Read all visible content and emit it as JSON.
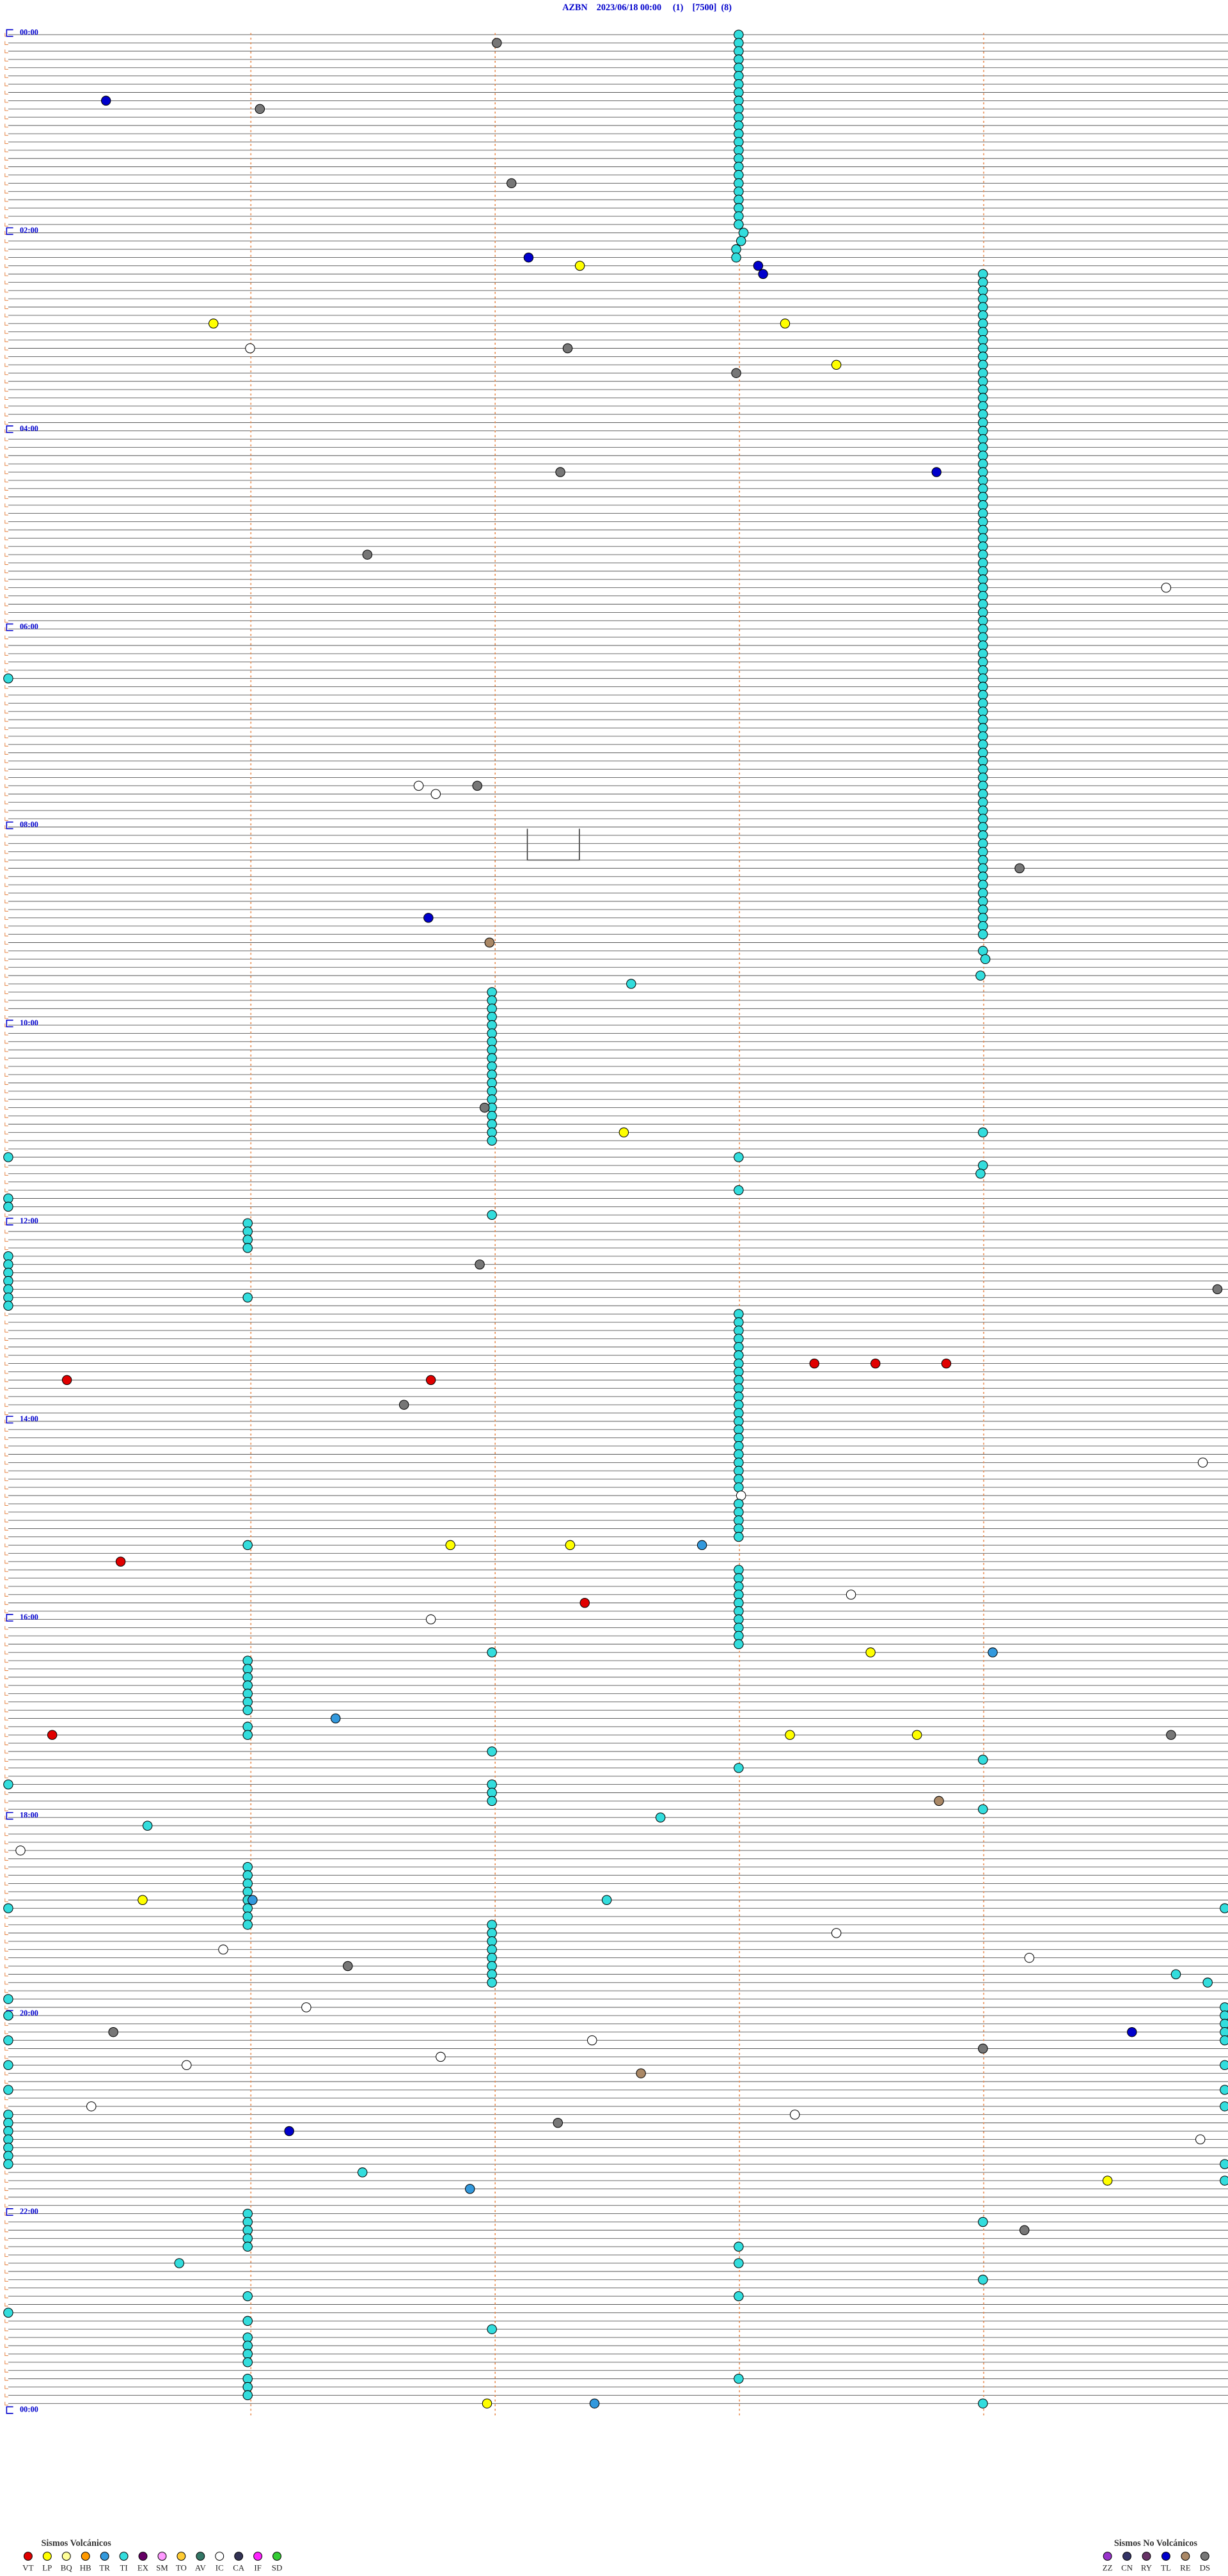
{
  "title": "AZBN    2023/06/18 00:00     (1)    [7500]  (8)",
  "hour_labels": [
    "00:00",
    "02:00",
    "04:00",
    "06:00",
    "08:00",
    "10:00",
    "12:00",
    "14:00",
    "16:00",
    "18:00",
    "20:00",
    "22:00",
    "00:00"
  ],
  "legend_volcanic": {
    "title": "Sismos Volcánicos",
    "codes": [
      "VT",
      "LP",
      "BQ",
      "HB",
      "TR",
      "TI",
      "EX",
      "SM",
      "TO",
      "AV",
      "IC",
      "CA",
      "IF",
      "SD"
    ],
    "colors": [
      "#e00000",
      "#ffff00",
      "#ffff99",
      "#ff9900",
      "#3399dd",
      "#33dddd",
      "#660066",
      "#ff99ff",
      "#ffcc33",
      "#337766",
      "#ffffff",
      "#333355",
      "#ff22ff",
      "#33cc33"
    ]
  },
  "legend_other": {
    "title": "Sismos No Volcánicos",
    "codes": [
      "ZZ",
      "CN",
      "RY",
      "TL",
      "RE",
      "DS"
    ],
    "colors": [
      "#9933cc",
      "#333366",
      "#663366",
      "#0000cc",
      "#aa8866",
      "#777777"
    ]
  },
  "events": [
    [
      "TI",
      0,
      2.99
    ],
    [
      "TI",
      1,
      2.99
    ],
    [
      "TI",
      2,
      2.99
    ],
    [
      "TI",
      3,
      2.99
    ],
    [
      "TI",
      4,
      2.99
    ],
    [
      "TI",
      5,
      2.99
    ],
    [
      "TI",
      6,
      2.99
    ],
    [
      "TI",
      7,
      2.99
    ],
    [
      "TI",
      8,
      2.99
    ],
    [
      "TI",
      9,
      2.99
    ],
    [
      "TI",
      10,
      2.99
    ],
    [
      "TI",
      11,
      2.99
    ],
    [
      "TI",
      12,
      2.99
    ],
    [
      "TI",
      13,
      2.99
    ],
    [
      "TI",
      14,
      2.99
    ],
    [
      "TI",
      15,
      2.99
    ],
    [
      "TI",
      16,
      2.99
    ],
    [
      "TI",
      17,
      2.99
    ],
    [
      "TI",
      18,
      2.99
    ],
    [
      "TI",
      19,
      2.99
    ],
    [
      "TI",
      20,
      2.99
    ],
    [
      "TI",
      21,
      2.99
    ],
    [
      "TI",
      22,
      2.99
    ],
    [
      "TI",
      23,
      2.99
    ],
    [
      "TI",
      24,
      3.01
    ],
    [
      "TI",
      25,
      3.0
    ],
    [
      "TI",
      26,
      2.98
    ],
    [
      "TI",
      27,
      2.98
    ],
    [
      "DS",
      1,
      2.0
    ],
    [
      "TL",
      8,
      0.4
    ],
    [
      "DS",
      9,
      1.03
    ],
    [
      "DS",
      18,
      2.06
    ],
    [
      "TL",
      27,
      2.13
    ],
    [
      "LP",
      28,
      2.34
    ],
    [
      "TL",
      28,
      3.07
    ],
    [
      "TL",
      29,
      3.09
    ],
    [
      "TI",
      29,
      3.99
    ],
    [
      "TI",
      30,
      3.99
    ],
    [
      "TI",
      31,
      3.99
    ],
    [
      "TI",
      32,
      3.99
    ],
    [
      "TI",
      33,
      3.99
    ],
    [
      "TI",
      34,
      3.99
    ],
    [
      "TI",
      35,
      3.99
    ],
    [
      "TI",
      36,
      3.99
    ],
    [
      "TI",
      37,
      3.99
    ],
    [
      "TI",
      38,
      3.99
    ],
    [
      "TI",
      39,
      3.99
    ],
    [
      "TI",
      40,
      3.99
    ],
    [
      "TI",
      41,
      3.99
    ],
    [
      "TI",
      42,
      3.99
    ],
    [
      "TI",
      43,
      3.99
    ],
    [
      "TI",
      44,
      3.99
    ],
    [
      "TI",
      45,
      3.99
    ],
    [
      "TI",
      46,
      3.99
    ],
    [
      "TI",
      47,
      3.99
    ],
    [
      "TI",
      48,
      3.99
    ],
    [
      "TI",
      49,
      3.99
    ],
    [
      "TI",
      50,
      3.99
    ],
    [
      "TI",
      51,
      3.99
    ],
    [
      "TI",
      52,
      3.99
    ],
    [
      "TI",
      53,
      3.99
    ],
    [
      "TI",
      54,
      3.99
    ],
    [
      "TI",
      55,
      3.99
    ],
    [
      "TI",
      56,
      3.99
    ],
    [
      "TI",
      57,
      3.99
    ],
    [
      "TI",
      58,
      3.99
    ],
    [
      "TI",
      59,
      3.99
    ],
    [
      "TI",
      60,
      3.99
    ],
    [
      "TI",
      61,
      3.99
    ],
    [
      "TI",
      62,
      3.99
    ],
    [
      "TI",
      63,
      3.99
    ],
    [
      "TI",
      64,
      3.99
    ],
    [
      "TI",
      65,
      3.99
    ],
    [
      "TI",
      66,
      3.99
    ],
    [
      "TI",
      67,
      3.99
    ],
    [
      "TI",
      68,
      3.99
    ],
    [
      "TI",
      69,
      3.99
    ],
    [
      "TI",
      70,
      3.99
    ],
    [
      "TI",
      71,
      3.99
    ],
    [
      "TI",
      72,
      3.99
    ],
    [
      "TI",
      73,
      3.99
    ],
    [
      "TI",
      74,
      3.99
    ],
    [
      "TI",
      75,
      3.99
    ],
    [
      "TI",
      76,
      3.99
    ],
    [
      "TI",
      77,
      3.99
    ],
    [
      "TI",
      78,
      3.99
    ],
    [
      "TI",
      79,
      3.99
    ],
    [
      "TI",
      80,
      3.99
    ],
    [
      "TI",
      81,
      3.99
    ],
    [
      "TI",
      82,
      3.99
    ],
    [
      "TI",
      83,
      3.99
    ],
    [
      "TI",
      84,
      3.99
    ],
    [
      "TI",
      85,
      3.99
    ],
    [
      "TI",
      86,
      3.99
    ],
    [
      "TI",
      87,
      3.99
    ],
    [
      "TI",
      88,
      3.99
    ],
    [
      "TI",
      89,
      3.99
    ],
    [
      "TI",
      90,
      3.99
    ],
    [
      "TI",
      91,
      3.99
    ],
    [
      "TI",
      92,
      3.99
    ],
    [
      "TI",
      93,
      3.99
    ],
    [
      "TI",
      94,
      3.99
    ],
    [
      "TI",
      95,
      3.99
    ],
    [
      "TI",
      96,
      3.99
    ],
    [
      "TI",
      97,
      3.99
    ],
    [
      "TI",
      98,
      3.99
    ],
    [
      "TI",
      99,
      3.99
    ],
    [
      "TI",
      100,
      3.99
    ],
    [
      "TI",
      101,
      3.99
    ],
    [
      "TI",
      102,
      3.99
    ],
    [
      "TI",
      103,
      3.99
    ],
    [
      "TI",
      104,
      3.99
    ],
    [
      "TI",
      105,
      3.99
    ],
    [
      "TI",
      106,
      3.99
    ],
    [
      "TI",
      107,
      3.99
    ],
    [
      "TI",
      108,
      3.99
    ],
    [
      "TI",
      109,
      3.99
    ],
    [
      "LP",
      35,
      0.84
    ],
    [
      "LP",
      35,
      3.18
    ],
    [
      "IC",
      38,
      0.99
    ],
    [
      "DS",
      38,
      2.29
    ],
    [
      "LP",
      40,
      3.39
    ],
    [
      "DS",
      41,
      2.98
    ],
    [
      "DS",
      53,
      2.26
    ],
    [
      "TL",
      53,
      3.8
    ],
    [
      "DS",
      63,
      1.47
    ],
    [
      "IC",
      67,
      4.74
    ],
    [
      "TI",
      78,
      0.0
    ],
    [
      "IC",
      91,
      1.68
    ],
    [
      "IC",
      92,
      1.75
    ],
    [
      "DS",
      91,
      1.92
    ],
    [
      "DS",
      101,
      4.14
    ],
    [
      "TL",
      107,
      1.72
    ],
    [
      "RE",
      110,
      1.97
    ],
    [
      "TI",
      111,
      3.99
    ],
    [
      "TI",
      112,
      4.0
    ],
    [
      "TI",
      114,
      3.98
    ],
    [
      "TI",
      115,
      2.55
    ],
    [
      "TI",
      116,
      1.98
    ],
    [
      "TI",
      117,
      1.98
    ],
    [
      "TI",
      118,
      1.98
    ],
    [
      "TI",
      119,
      1.98
    ],
    [
      "TI",
      120,
      1.98
    ],
    [
      "TI",
      121,
      1.98
    ],
    [
      "TI",
      122,
      1.98
    ],
    [
      "TI",
      123,
      1.98
    ],
    [
      "TI",
      124,
      1.98
    ],
    [
      "TI",
      125,
      1.98
    ],
    [
      "TI",
      126,
      1.98
    ],
    [
      "TI",
      127,
      1.98
    ],
    [
      "TI",
      128,
      1.98
    ],
    [
      "TI",
      129,
      1.98
    ],
    [
      "TI",
      130,
      1.98
    ],
    [
      "TI",
      131,
      1.98
    ],
    [
      "TI",
      132,
      1.98
    ],
    [
      "TI",
      133,
      1.98
    ],
    [
      "TI",
      134,
      1.98
    ],
    [
      "DS",
      130,
      1.95
    ],
    [
      "LP",
      133,
      2.52
    ],
    [
      "TI",
      133,
      3.99
    ],
    [
      "TI",
      136,
      0.0
    ],
    [
      "TI",
      136,
      2.99
    ],
    [
      "TI",
      137,
      3.99
    ],
    [
      "TI",
      138,
      3.98
    ],
    [
      "TI",
      140,
      2.99
    ],
    [
      "TI",
      141,
      0.0
    ],
    [
      "TI",
      142,
      0.0
    ],
    [
      "TI",
      143,
      1.98
    ],
    [
      "TI",
      144,
      0.98
    ],
    [
      "TI",
      145,
      0.98
    ],
    [
      "TI",
      146,
      0.98
    ],
    [
      "TI",
      147,
      0.98
    ],
    [
      "TI",
      148,
      0.0
    ],
    [
      "TI",
      149,
      0.0
    ],
    [
      "TI",
      150,
      0.0
    ],
    [
      "TI",
      151,
      0.0
    ],
    [
      "TI",
      152,
      0.0
    ],
    [
      "TI",
      153,
      0.0
    ],
    [
      "TI",
      154,
      0.0
    ],
    [
      "DS",
      149,
      1.93
    ],
    [
      "DS",
      152,
      4.95
    ],
    [
      "TI",
      153,
      0.98
    ],
    [
      "TI",
      155,
      2.99
    ],
    [
      "TI",
      156,
      2.99
    ],
    [
      "TI",
      157,
      2.99
    ],
    [
      "TI",
      158,
      2.99
    ],
    [
      "TI",
      159,
      2.99
    ],
    [
      "TI",
      160,
      2.99
    ],
    [
      "TI",
      161,
      2.99
    ],
    [
      "TI",
      162,
      2.99
    ],
    [
      "TI",
      163,
      2.99
    ],
    [
      "TI",
      164,
      2.99
    ],
    [
      "TI",
      165,
      2.99
    ],
    [
      "TI",
      166,
      2.99
    ],
    [
      "TI",
      167,
      2.99
    ],
    [
      "TI",
      168,
      2.99
    ],
    [
      "TI",
      169,
      2.99
    ],
    [
      "TI",
      170,
      2.99
    ],
    [
      "TI",
      171,
      2.99
    ],
    [
      "TI",
      172,
      2.99
    ],
    [
      "TI",
      173,
      2.99
    ],
    [
      "TI",
      174,
      2.99
    ],
    [
      "TI",
      175,
      2.99
    ],
    [
      "TI",
      176,
      2.99
    ],
    [
      "IC",
      177,
      3.0
    ],
    [
      "TI",
      178,
      2.99
    ],
    [
      "TI",
      179,
      2.99
    ],
    [
      "TI",
      180,
      2.99
    ],
    [
      "TI",
      181,
      2.99
    ],
    [
      "TI",
      182,
      2.99
    ],
    [
      "TI",
      186,
      2.99
    ],
    [
      "TI",
      187,
      2.99
    ],
    [
      "TI",
      188,
      2.99
    ],
    [
      "TI",
      189,
      2.99
    ],
    [
      "TI",
      190,
      2.99
    ],
    [
      "TI",
      191,
      2.99
    ],
    [
      "TI",
      192,
      2.99
    ],
    [
      "TI",
      193,
      2.99
    ],
    [
      "TI",
      194,
      2.99
    ],
    [
      "TI",
      195,
      2.99
    ],
    [
      "VT",
      161,
      3.3
    ],
    [
      "VT",
      161,
      3.55
    ],
    [
      "VT",
      161,
      3.84
    ],
    [
      "VT",
      163,
      0.24
    ],
    [
      "VT",
      163,
      1.73
    ],
    [
      "DS",
      166,
      1.62
    ],
    [
      "IC",
      173,
      4.89
    ],
    [
      "TI",
      183,
      0.98
    ],
    [
      "LP",
      183,
      1.81
    ],
    [
      "LP",
      183,
      2.3
    ],
    [
      "TR",
      183,
      2.84
    ],
    [
      "VT",
      185,
      0.46
    ],
    [
      "IC",
      189,
      3.45
    ],
    [
      "VT",
      190,
      2.36
    ],
    [
      "IC",
      192,
      1.73
    ],
    [
      "TI",
      196,
      1.98
    ],
    [
      "LP",
      196,
      3.53
    ],
    [
      "TR",
      196,
      4.03
    ],
    [
      "TI",
      197,
      0.98
    ],
    [
      "TI",
      198,
      0.98
    ],
    [
      "TI",
      199,
      0.98
    ],
    [
      "TI",
      200,
      0.98
    ],
    [
      "TI",
      201,
      0.98
    ],
    [
      "TI",
      202,
      0.98
    ],
    [
      "TI",
      203,
      0.98
    ],
    [
      "TI",
      205,
      0.98
    ],
    [
      "TI",
      206,
      0.98
    ],
    [
      "TR",
      204,
      1.34
    ],
    [
      "VT",
      206,
      0.18
    ],
    [
      "LP",
      206,
      3.2
    ],
    [
      "LP",
      206,
      3.72
    ],
    [
      "DS",
      206,
      4.76
    ],
    [
      "TI",
      208,
      1.98
    ],
    [
      "TI",
      210,
      2.99
    ],
    [
      "TI",
      209,
      3.99
    ],
    [
      "TI",
      212,
      0.0
    ],
    [
      "TI",
      212,
      1.98
    ],
    [
      "TI",
      213,
      1.98
    ],
    [
      "TI",
      214,
      1.98
    ],
    [
      "RE",
      214,
      3.81
    ],
    [
      "TI",
      215,
      3.99
    ],
    [
      "TI",
      217,
      0.57
    ],
    [
      "TI",
      216,
      2.67
    ],
    [
      "IC",
      220,
      0.05
    ],
    [
      "TI",
      222,
      0.98
    ],
    [
      "TI",
      223,
      0.98
    ],
    [
      "TI",
      224,
      0.98
    ],
    [
      "TI",
      225,
      0.98
    ],
    [
      "TI",
      226,
      0.98
    ],
    [
      "TI",
      227,
      0.98
    ],
    [
      "TI",
      228,
      0.98
    ],
    [
      "TI",
      229,
      0.98
    ],
    [
      "LP",
      226,
      0.55
    ],
    [
      "TR",
      226,
      1.0
    ],
    [
      "TI",
      226,
      2.45
    ],
    [
      "TI",
      227,
      0.0
    ],
    [
      "TI",
      227,
      4.98
    ],
    [
      "TI",
      229,
      1.98
    ],
    [
      "TI",
      230,
      1.98
    ],
    [
      "TI",
      231,
      1.98
    ],
    [
      "TI",
      232,
      1.98
    ],
    [
      "TI",
      233,
      1.98
    ],
    [
      "TI",
      234,
      1.98
    ],
    [
      "TI",
      235,
      1.98
    ],
    [
      "TI",
      236,
      1.98
    ],
    [
      "IC",
      230,
      3.39
    ],
    [
      "IC",
      232,
      0.88
    ],
    [
      "IC",
      233,
      4.18
    ],
    [
      "DS",
      234,
      1.39
    ],
    [
      "TI",
      235,
      4.78
    ],
    [
      "TI",
      236,
      4.91
    ],
    [
      "TI",
      238,
      0.0
    ],
    [
      "TI",
      240,
      0.0
    ],
    [
      "TI",
      239,
      4.98
    ],
    [
      "TI",
      240,
      4.98
    ],
    [
      "TI",
      241,
      4.98
    ],
    [
      "TI",
      242,
      4.98
    ],
    [
      "TI",
      243,
      4.98
    ],
    [
      "IC",
      239,
      1.22
    ],
    [
      "DS",
      242,
      0.43
    ],
    [
      "TL",
      242,
      4.6
    ],
    [
      "IC",
      243,
      2.39
    ],
    [
      "DS",
      244,
      3.99
    ],
    [
      "TI",
      243,
      0.0
    ],
    [
      "IC",
      245,
      1.77
    ],
    [
      "IC",
      246,
      0.73
    ],
    [
      "TI",
      246,
      0.0
    ],
    [
      "TI",
      246,
      4.98
    ],
    [
      "RE",
      247,
      2.59
    ],
    [
      "TI",
      249,
      0.0
    ],
    [
      "TI",
      249,
      4.98
    ],
    [
      "IC",
      251,
      0.34
    ],
    [
      "TI",
      251,
      4.98
    ],
    [
      "IC",
      252,
      3.22
    ],
    [
      "DS",
      253,
      2.25
    ],
    [
      "TI",
      252,
      0.0
    ],
    [
      "TI",
      253,
      0.0
    ],
    [
      "TI",
      254,
      0.0
    ],
    [
      "TI",
      255,
      0.0
    ],
    [
      "TI",
      256,
      0.0
    ],
    [
      "TI",
      257,
      0.0
    ],
    [
      "TI",
      258,
      0.0
    ],
    [
      "TL",
      254,
      1.15
    ],
    [
      "IC",
      255,
      4.88
    ],
    [
      "TI",
      258,
      4.98
    ],
    [
      "TI",
      260,
      4.98
    ],
    [
      "TI",
      259,
      1.45
    ],
    [
      "LP",
      260,
      4.5
    ],
    [
      "TR",
      261,
      1.89
    ],
    [
      "TI",
      264,
      0.98
    ],
    [
      "TI",
      265,
      0.98
    ],
    [
      "TI",
      266,
      0.98
    ],
    [
      "TI",
      267,
      0.98
    ],
    [
      "TI",
      268,
      0.98
    ],
    [
      "DS",
      266,
      4.16
    ],
    [
      "TI",
      265,
      3.99
    ],
    [
      "TI",
      268,
      2.99
    ],
    [
      "TI",
      270,
      0.7
    ],
    [
      "TI",
      270,
      2.99
    ],
    [
      "TI",
      272,
      3.99
    ],
    [
      "TI",
      274,
      0.98
    ],
    [
      "TI",
      274,
      2.99
    ],
    [
      "TI",
      276,
      0.0
    ],
    [
      "TI",
      277,
      0.98
    ],
    [
      "TI",
      278,
      1.98
    ],
    [
      "TI",
      279,
      0.98
    ],
    [
      "TI",
      280,
      0.98
    ],
    [
      "TI",
      281,
      0.98
    ],
    [
      "TI",
      282,
      0.98
    ],
    [
      "TI",
      284,
      0.98
    ],
    [
      "TI",
      285,
      0.98
    ],
    [
      "TI",
      286,
      0.98
    ],
    [
      "TI",
      284,
      2.99
    ],
    [
      "LP",
      287,
      1.96
    ],
    [
      "TR",
      287,
      2.4
    ],
    [
      "TI",
      287,
      3.99
    ]
  ]
}
